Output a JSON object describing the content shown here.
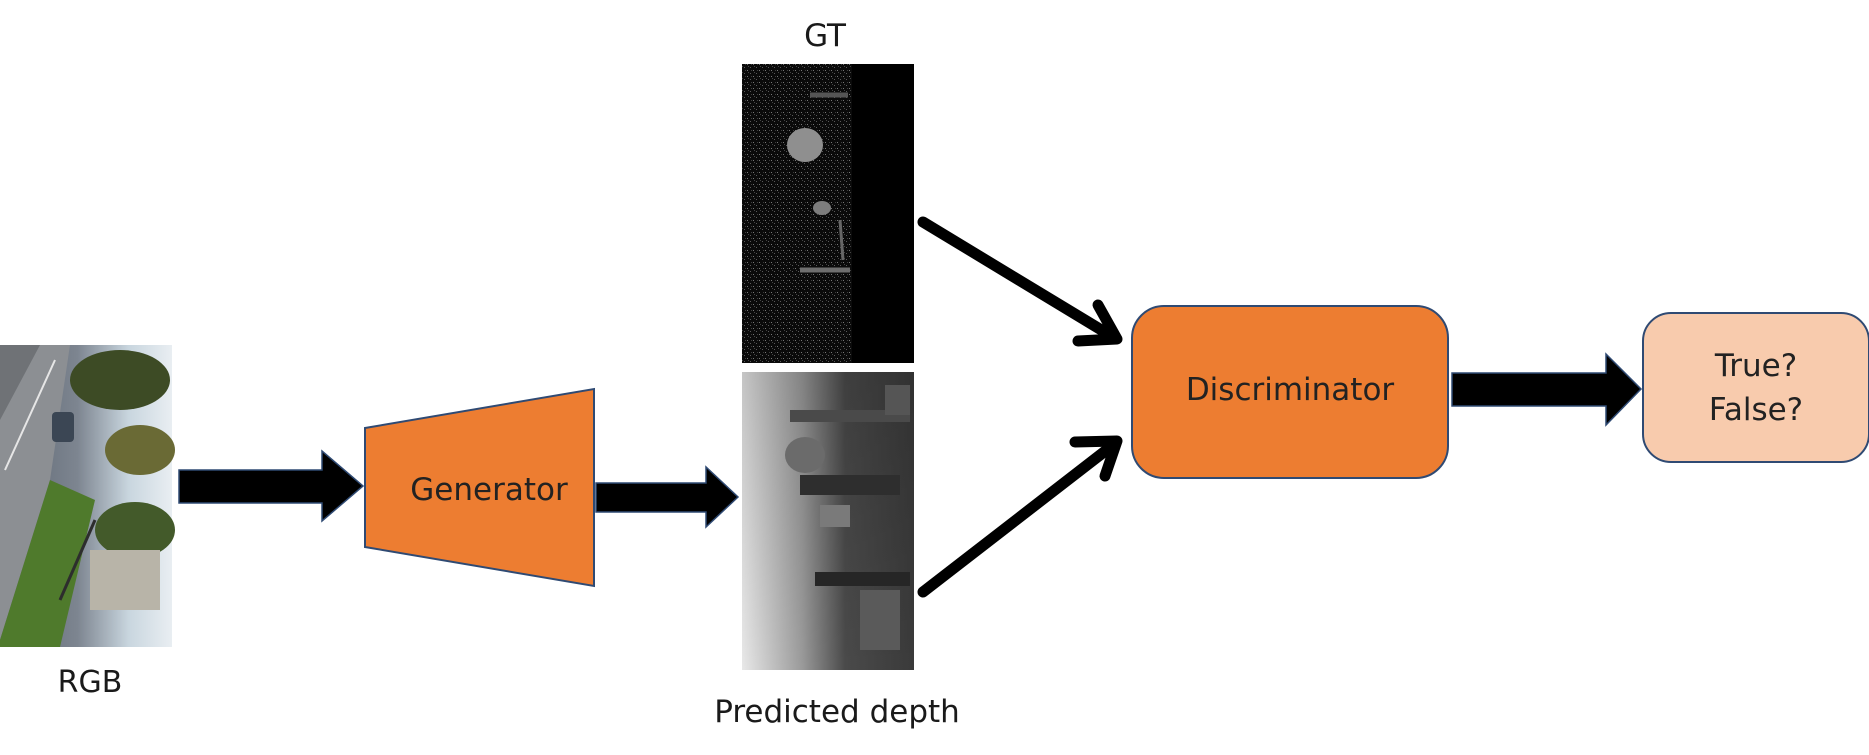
{
  "labels": {
    "rgb": "RGB",
    "gt": "GT",
    "predicted_depth": "Predicted depth"
  },
  "nodes": {
    "generator": "Generator",
    "discriminator": "Discriminator",
    "output_true": "True?",
    "output_false": "False?"
  },
  "colors": {
    "generator_fill": "#ED7D31",
    "discriminator_fill": "#ED7D31",
    "output_fill": "#F8CBAD",
    "node_stroke": "#2F4A73",
    "arrow": "#000000"
  }
}
